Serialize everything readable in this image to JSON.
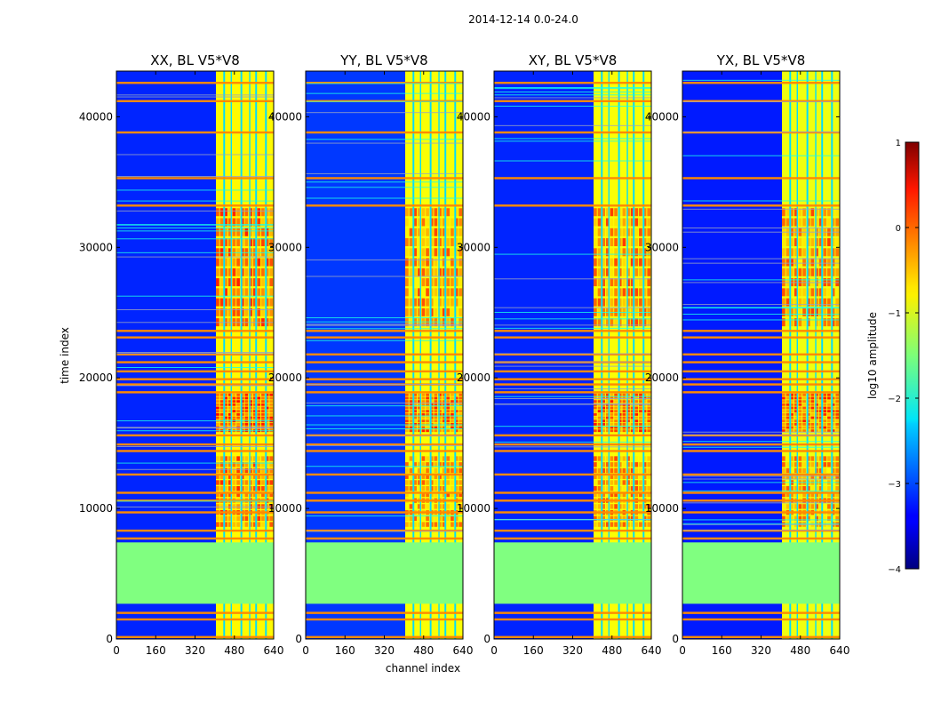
{
  "chart_data": {
    "type": "heatmap",
    "suptitle": "2014-12-14 0.0-24.0",
    "xlabel": "channel index",
    "ylabel": "time index",
    "xlim": [
      0,
      640
    ],
    "ylim": [
      0,
      43500
    ],
    "xticks": [
      0,
      160,
      320,
      480,
      640
    ],
    "yticks": [
      0,
      10000,
      20000,
      30000,
      40000
    ],
    "colorbar": {
      "label": "log10 amplitude",
      "min": -4,
      "max": 1,
      "ticks": [
        1,
        0,
        -1,
        -2,
        -3,
        -4
      ],
      "tick_labels": [
        "1",
        "0",
        "−1",
        "−2",
        "−3",
        "−4"
      ],
      "colormap": "jet"
    },
    "panels": [
      {
        "title": "XX, BL V5*V8",
        "band_level": -0.85,
        "hot_level": 0.3,
        "bg_level": -3.2
      },
      {
        "title": "YY, BL V5*V8",
        "band_level": -0.9,
        "hot_level": 0.0,
        "bg_level": -3.1
      },
      {
        "title": "XY, BL V5*V8",
        "band_level": -0.9,
        "hot_level": 0.1,
        "bg_level": -3.2
      },
      {
        "title": "YX, BL V5*V8",
        "band_level": -0.95,
        "hot_level": 0.05,
        "bg_level": -3.25
      }
    ],
    "flagged_time_range": [
      2700,
      7400
    ],
    "flagged_value": -1.5,
    "rfi_channel_range": [
      405,
      640
    ],
    "rfi_gap_channels": [
      [
        435,
        442
      ],
      [
        465,
        470
      ],
      [
        505,
        512
      ],
      [
        540,
        545
      ],
      [
        565,
        572
      ],
      [
        605,
        612
      ]
    ],
    "horizontal_flag_rows": [
      150,
      1500,
      2000,
      7700,
      8300,
      9700,
      10600,
      11200,
      12600,
      14400,
      14900,
      15600,
      18900,
      19500,
      19900,
      20500,
      21200,
      21800,
      23100,
      23600,
      33200,
      35300,
      38800,
      41200,
      42600
    ],
    "warm_blocks": [
      {
        "t0": 15800,
        "t1": 18800,
        "level": -0.2
      },
      {
        "t0": 23800,
        "t1": 33000,
        "level": -0.4
      },
      {
        "t0": 8500,
        "t1": 14000,
        "level": -0.45
      }
    ]
  }
}
